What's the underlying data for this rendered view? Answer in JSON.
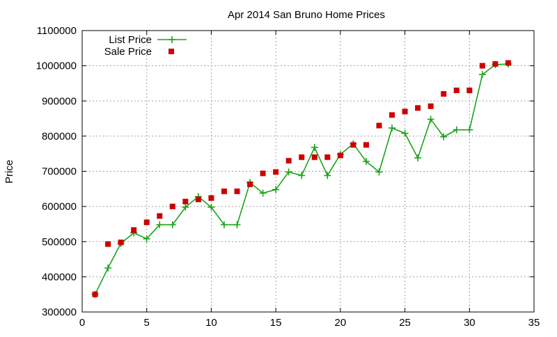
{
  "chart_data": {
    "type": "line",
    "title": "Apr 2014 San Bruno Home Prices",
    "xlabel": "",
    "ylabel": "Price",
    "xlim": [
      0,
      35
    ],
    "ylim": [
      300000,
      1100000
    ],
    "xticks": [
      "0",
      "5",
      "10",
      "15",
      "20",
      "25",
      "30",
      "35"
    ],
    "yticks": [
      "300000",
      "400000",
      "500000",
      "600000",
      "700000",
      "800000",
      "900000",
      "1000000",
      "1100000"
    ],
    "grid": true,
    "legend_position": "top-left",
    "series": [
      {
        "name": "List Price",
        "style": "line-with-plus-markers",
        "color": "#1aa31a",
        "x": [
          1,
          2,
          3,
          4,
          5,
          6,
          7,
          8,
          9,
          10,
          11,
          12,
          13,
          14,
          15,
          16,
          17,
          18,
          19,
          20,
          21,
          22,
          23,
          24,
          25,
          26,
          27,
          28,
          29,
          30,
          31,
          32,
          33
        ],
        "values": [
          350000,
          425000,
          495000,
          525000,
          508000,
          548000,
          548000,
          598000,
          628000,
          598000,
          548000,
          548000,
          668000,
          638000,
          648000,
          698000,
          688000,
          768000,
          688000,
          748000,
          778000,
          728000,
          698000,
          823000,
          808000,
          738000,
          848000,
          798000,
          818000,
          818000,
          975000,
          1003000,
          1005000
        ]
      },
      {
        "name": "Sale Price",
        "style": "square-markers",
        "color": "#cc0000",
        "x": [
          1,
          2,
          3,
          4,
          5,
          6,
          7,
          8,
          9,
          10,
          11,
          12,
          13,
          14,
          15,
          16,
          17,
          18,
          19,
          20,
          21,
          22,
          23,
          24,
          25,
          26,
          27,
          28,
          29,
          30,
          31,
          32,
          33
        ],
        "values": [
          350000,
          493000,
          498000,
          533000,
          555000,
          573000,
          600000,
          614000,
          620000,
          624000,
          643000,
          643000,
          663000,
          694000,
          698000,
          730000,
          740000,
          740000,
          740000,
          745000,
          775000,
          775000,
          830000,
          860000,
          870000,
          880000,
          885000,
          920000,
          930000,
          930000,
          1000000,
          1005000,
          1008000
        ]
      }
    ]
  }
}
